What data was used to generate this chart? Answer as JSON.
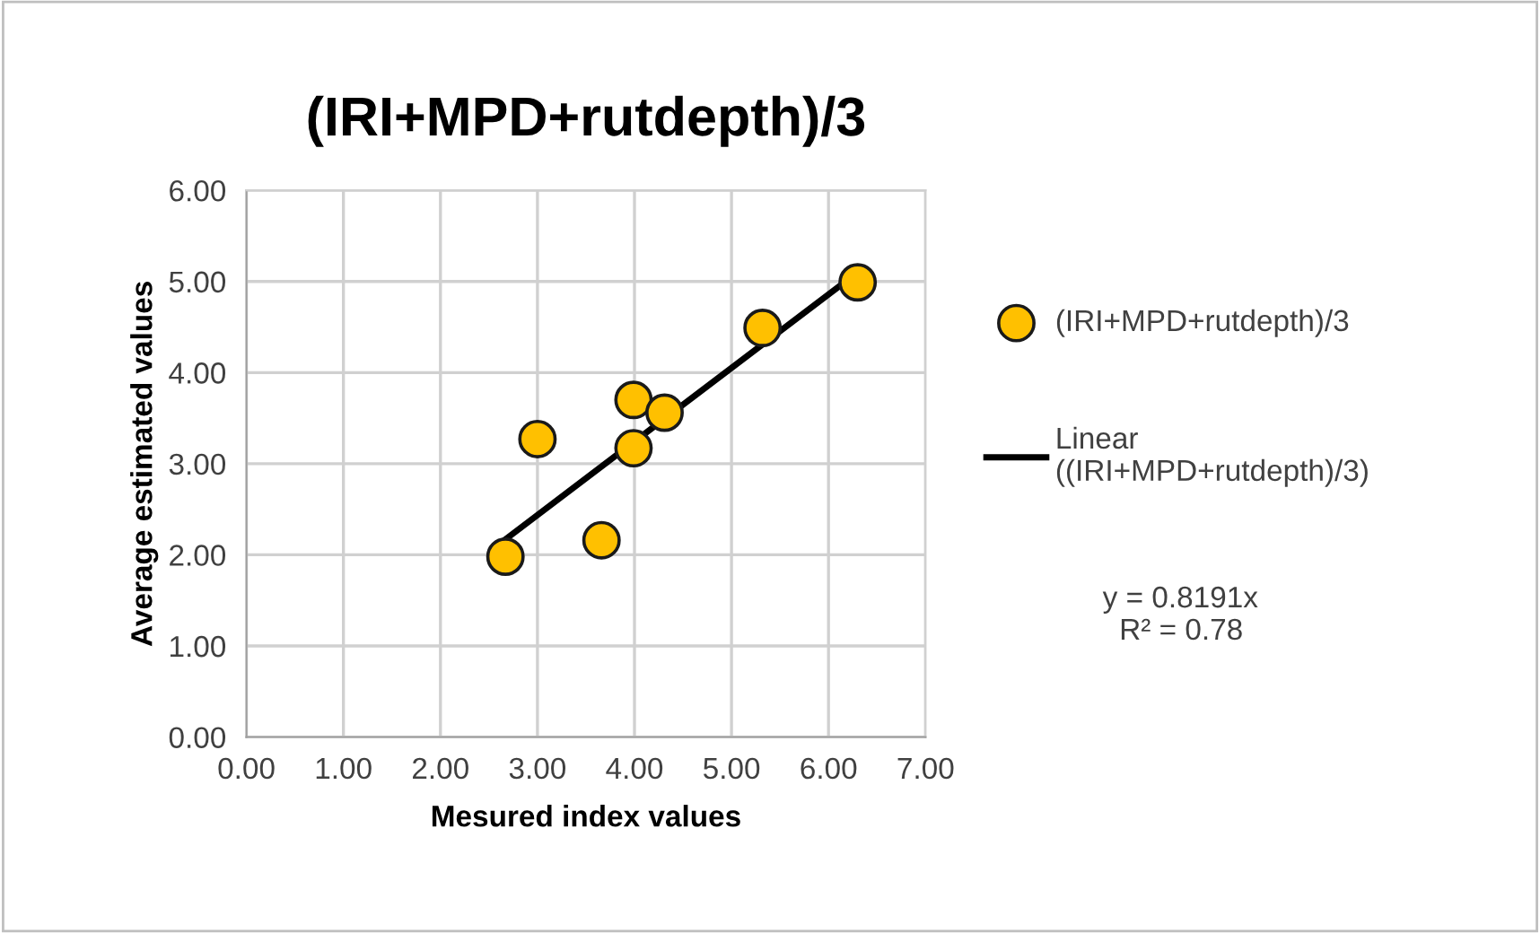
{
  "chart_data": {
    "type": "scatter",
    "title": "(IRI+MPD+rutdepth)/3",
    "xlabel": "Mesured index values",
    "ylabel": "Average estimated values",
    "series": [
      {
        "name": "(IRI+MPD+rutdepth)/3",
        "color": "#ffc000",
        "marker": "circle",
        "x": [
          2.67,
          3.0,
          3.66,
          3.99,
          3.99,
          4.31,
          5.32,
          6.3
        ],
        "values": [
          1.98,
          3.27,
          2.16,
          3.7,
          3.17,
          3.56,
          4.49,
          4.99
        ]
      },
      {
        "name": "Linear\n((IRI+MPD+rutdepth)/3)",
        "type": "line",
        "color": "#000000",
        "x": [
          2.67,
          6.3
        ],
        "values": [
          2.17,
          5.1
        ]
      }
    ],
    "xlim": [
      0,
      7
    ],
    "ylim": [
      0,
      6
    ],
    "xticks": [
      {
        "value": 0,
        "label": "0.00"
      },
      {
        "value": 1,
        "label": "1.00"
      },
      {
        "value": 2,
        "label": "2.00"
      },
      {
        "value": 3,
        "label": "3.00"
      },
      {
        "value": 4,
        "label": "4.00"
      },
      {
        "value": 5,
        "label": "5.00"
      },
      {
        "value": 6,
        "label": "6.00"
      },
      {
        "value": 7,
        "label": "7.00"
      }
    ],
    "yticks": [
      {
        "value": 0,
        "label": "0.00"
      },
      {
        "value": 1,
        "label": "1.00"
      },
      {
        "value": 2,
        "label": "2.00"
      },
      {
        "value": 3,
        "label": "3.00"
      },
      {
        "value": 4,
        "label": "4.00"
      },
      {
        "value": 5,
        "label": "5.00"
      },
      {
        "value": 6,
        "label": "6.00"
      }
    ],
    "grid": true,
    "legend": "right",
    "annotations": [
      "y = 0.8191x\n  R² = 0.78"
    ]
  }
}
